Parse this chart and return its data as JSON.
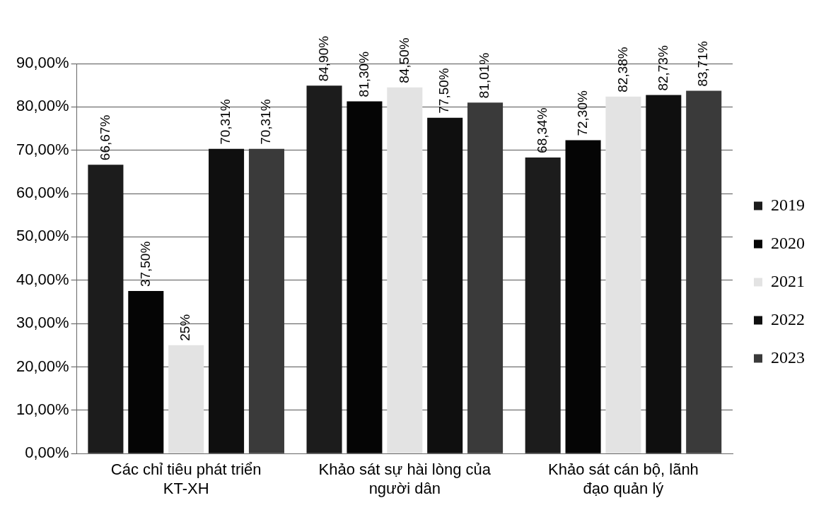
{
  "chart_data": {
    "type": "bar",
    "categories": [
      "Các chỉ tiêu phát triển KT-XH",
      "Khảo sát sự hài lòng của người dân",
      "Khảo sát cán bộ, lãnh đạo quản lý"
    ],
    "series": [
      {
        "name": "2019",
        "color": "#1c1c1c",
        "values": [
          66.67,
          84.9,
          68.34
        ],
        "value_labels": [
          "66,67%",
          "84,90%",
          "68,34%"
        ]
      },
      {
        "name": "2020",
        "color": "#050505",
        "values": [
          37.5,
          81.3,
          72.3
        ],
        "value_labels": [
          "37,50%",
          "81,30%",
          "72,30%"
        ]
      },
      {
        "name": "2021",
        "color": "#e3e3e3",
        "values": [
          25,
          84.5,
          82.38
        ],
        "value_labels": [
          "25%",
          "84,50%",
          "82,38%"
        ]
      },
      {
        "name": "2022",
        "color": "#0f0f0f",
        "values": [
          70.31,
          77.5,
          82.73
        ],
        "value_labels": [
          "70,31%",
          "77,50%",
          "82,73%"
        ]
      },
      {
        "name": "2023",
        "color": "#3a3a3a",
        "values": [
          70.31,
          81.01,
          83.71
        ],
        "value_labels": [
          "70,31%",
          "81,01%",
          "83,71%"
        ]
      }
    ],
    "ylim": [
      0,
      90
    ],
    "yticks": [
      {
        "value": 0,
        "label": "0,00%"
      },
      {
        "value": 10,
        "label": "10,00%"
      },
      {
        "value": 20,
        "label": "20,00%"
      },
      {
        "value": 30,
        "label": "30,00%"
      },
      {
        "value": 40,
        "label": "40,00%"
      },
      {
        "value": 50,
        "label": "50,00%"
      },
      {
        "value": 60,
        "label": "60,00%"
      },
      {
        "value": 70,
        "label": "70,00%"
      },
      {
        "value": 80,
        "label": "80,00%"
      },
      {
        "value": 90,
        "label": "90,00%"
      }
    ],
    "grid": "y",
    "legend": "right"
  }
}
